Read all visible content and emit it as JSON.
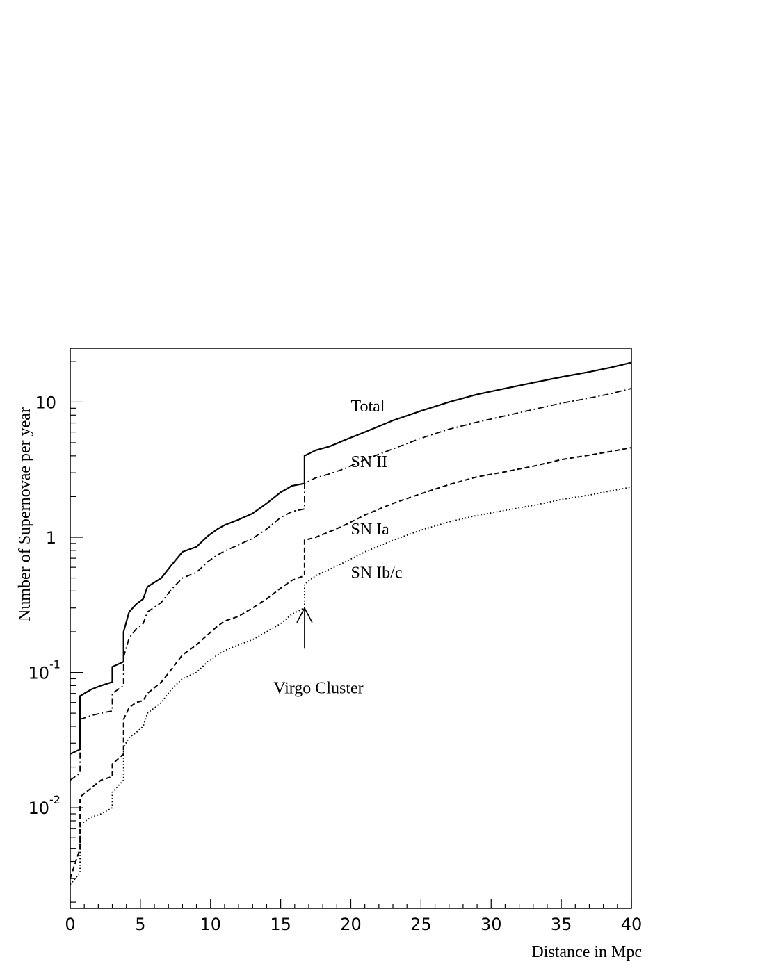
{
  "chart_data": {
    "type": "line",
    "title": "",
    "xlabel": "Distance in Mpc",
    "ylabel": "Number of Supernovae per year",
    "x_scale": "linear",
    "y_scale": "log",
    "xlim": [
      0,
      40
    ],
    "ylim": [
      0.0018,
      25
    ],
    "x_ticks": [
      0,
      5,
      10,
      15,
      20,
      25,
      30,
      35,
      40
    ],
    "x_tick_labels": [
      "0",
      "5",
      "10",
      "15",
      "20",
      "25",
      "30",
      "35",
      "40"
    ],
    "y_ticks": [
      {
        "value": 0.01,
        "base": "10",
        "exp": "-2"
      },
      {
        "value": 0.1,
        "base": "10",
        "exp": "-1"
      },
      {
        "value": 1,
        "base": "1",
        "exp": ""
      },
      {
        "value": 10,
        "base": "10",
        "exp": ""
      }
    ],
    "grid": false,
    "legend": "none",
    "series": [
      {
        "name": "Total",
        "style": "solid",
        "stroke_width": 2.2,
        "label_at": [
          20,
          8.5
        ],
        "points": [
          [
            0,
            0.025
          ],
          [
            0.7,
            0.027
          ],
          [
            0.7,
            0.067
          ],
          [
            1.5,
            0.075
          ],
          [
            2.2,
            0.08
          ],
          [
            3,
            0.085
          ],
          [
            3,
            0.11
          ],
          [
            3.8,
            0.12
          ],
          [
            3.8,
            0.2
          ],
          [
            4.2,
            0.28
          ],
          [
            4.7,
            0.32
          ],
          [
            5.2,
            0.35
          ],
          [
            5.5,
            0.43
          ],
          [
            6.5,
            0.5
          ],
          [
            7.2,
            0.62
          ],
          [
            8,
            0.78
          ],
          [
            9,
            0.85
          ],
          [
            9.8,
            1.02
          ],
          [
            10.5,
            1.15
          ],
          [
            11,
            1.23
          ],
          [
            12,
            1.35
          ],
          [
            13,
            1.5
          ],
          [
            14,
            1.78
          ],
          [
            15,
            2.15
          ],
          [
            15.8,
            2.4
          ],
          [
            16.7,
            2.5
          ],
          [
            16.7,
            4.0
          ],
          [
            17.5,
            4.4
          ],
          [
            18.5,
            4.7
          ],
          [
            19.5,
            5.2
          ],
          [
            21,
            6.0
          ],
          [
            23,
            7.3
          ],
          [
            25,
            8.6
          ],
          [
            27,
            10.0
          ],
          [
            29,
            11.4
          ],
          [
            31,
            12.6
          ],
          [
            33,
            13.9
          ],
          [
            35,
            15.3
          ],
          [
            37,
            16.7
          ],
          [
            38.5,
            18.0
          ],
          [
            40,
            19.6
          ]
        ]
      },
      {
        "name": "SN II",
        "style": "dashdot",
        "stroke_width": 1.8,
        "label_at": [
          20,
          3.3
        ],
        "points": [
          [
            0,
            0.016
          ],
          [
            0.7,
            0.018
          ],
          [
            0.7,
            0.045
          ],
          [
            1.5,
            0.048
          ],
          [
            2.2,
            0.05
          ],
          [
            3,
            0.052
          ],
          [
            3,
            0.07
          ],
          [
            3.8,
            0.08
          ],
          [
            3.8,
            0.13
          ],
          [
            4.2,
            0.18
          ],
          [
            4.7,
            0.21
          ],
          [
            5.2,
            0.23
          ],
          [
            5.5,
            0.28
          ],
          [
            6.5,
            0.33
          ],
          [
            7.2,
            0.41
          ],
          [
            8,
            0.5
          ],
          [
            9,
            0.55
          ],
          [
            9.8,
            0.66
          ],
          [
            10.5,
            0.74
          ],
          [
            11,
            0.79
          ],
          [
            12,
            0.88
          ],
          [
            13,
            0.98
          ],
          [
            14,
            1.15
          ],
          [
            15,
            1.4
          ],
          [
            15.8,
            1.55
          ],
          [
            16.7,
            1.62
          ],
          [
            16.7,
            2.5
          ],
          [
            17.5,
            2.75
          ],
          [
            18.5,
            2.95
          ],
          [
            19.5,
            3.2
          ],
          [
            21,
            3.75
          ],
          [
            23,
            4.5
          ],
          [
            25,
            5.4
          ],
          [
            27,
            6.3
          ],
          [
            29,
            7.1
          ],
          [
            31,
            7.9
          ],
          [
            33,
            8.8
          ],
          [
            35,
            9.8
          ],
          [
            37,
            10.7
          ],
          [
            38.5,
            11.5
          ],
          [
            40,
            12.6
          ]
        ]
      },
      {
        "name": "SN Ia",
        "style": "dashed",
        "stroke_width": 2.0,
        "label_at": [
          20,
          1.05
        ],
        "points": [
          [
            0,
            0.003
          ],
          [
            0.7,
            0.005
          ],
          [
            0.7,
            0.012
          ],
          [
            1.5,
            0.014
          ],
          [
            2.2,
            0.016
          ],
          [
            3,
            0.017
          ],
          [
            3,
            0.021
          ],
          [
            3.8,
            0.025
          ],
          [
            3.8,
            0.045
          ],
          [
            4.2,
            0.055
          ],
          [
            4.7,
            0.06
          ],
          [
            5.2,
            0.062
          ],
          [
            5.5,
            0.07
          ],
          [
            6.5,
            0.085
          ],
          [
            7.2,
            0.105
          ],
          [
            8,
            0.135
          ],
          [
            9,
            0.16
          ],
          [
            9.8,
            0.19
          ],
          [
            10.5,
            0.22
          ],
          [
            11,
            0.24
          ],
          [
            12,
            0.26
          ],
          [
            13,
            0.3
          ],
          [
            14,
            0.35
          ],
          [
            15,
            0.42
          ],
          [
            15.8,
            0.48
          ],
          [
            16.7,
            0.52
          ],
          [
            16.7,
            0.95
          ],
          [
            17.5,
            1.0
          ],
          [
            18.5,
            1.1
          ],
          [
            19.5,
            1.22
          ],
          [
            21,
            1.46
          ],
          [
            23,
            1.78
          ],
          [
            25,
            2.1
          ],
          [
            27,
            2.45
          ],
          [
            29,
            2.8
          ],
          [
            31,
            3.05
          ],
          [
            33,
            3.35
          ],
          [
            35,
            3.75
          ],
          [
            37,
            4.05
          ],
          [
            38.5,
            4.3
          ],
          [
            40,
            4.6
          ]
        ]
      },
      {
        "name": "SN Ib/c",
        "style": "dotted",
        "stroke_width": 1.8,
        "label_at": [
          20,
          0.5
        ],
        "points": [
          [
            0,
            0.0027
          ],
          [
            0.7,
            0.0033
          ],
          [
            0.7,
            0.0075
          ],
          [
            1.5,
            0.0085
          ],
          [
            2.2,
            0.009
          ],
          [
            3,
            0.01
          ],
          [
            3,
            0.013
          ],
          [
            3.8,
            0.016
          ],
          [
            3.8,
            0.028
          ],
          [
            4.2,
            0.033
          ],
          [
            4.7,
            0.036
          ],
          [
            5.2,
            0.04
          ],
          [
            5.5,
            0.05
          ],
          [
            6.5,
            0.06
          ],
          [
            7.2,
            0.075
          ],
          [
            8,
            0.09
          ],
          [
            9,
            0.1
          ],
          [
            9.8,
            0.12
          ],
          [
            10.5,
            0.135
          ],
          [
            11,
            0.145
          ],
          [
            12,
            0.16
          ],
          [
            13,
            0.175
          ],
          [
            14,
            0.2
          ],
          [
            15,
            0.23
          ],
          [
            15.8,
            0.27
          ],
          [
            16.7,
            0.3
          ],
          [
            16.7,
            0.45
          ],
          [
            17.5,
            0.52
          ],
          [
            18.5,
            0.58
          ],
          [
            19.5,
            0.65
          ],
          [
            21,
            0.78
          ],
          [
            23,
            0.95
          ],
          [
            25,
            1.13
          ],
          [
            27,
            1.3
          ],
          [
            29,
            1.45
          ],
          [
            31,
            1.58
          ],
          [
            33,
            1.72
          ],
          [
            35,
            1.9
          ],
          [
            37,
            2.05
          ],
          [
            38.5,
            2.2
          ],
          [
            40,
            2.35
          ]
        ]
      }
    ],
    "annotations": [
      {
        "text": "Virgo Cluster",
        "arrow_x": 16.7,
        "arrow_from": 0.15,
        "arrow_to": 0.3,
        "text_y": 0.07
      }
    ]
  }
}
